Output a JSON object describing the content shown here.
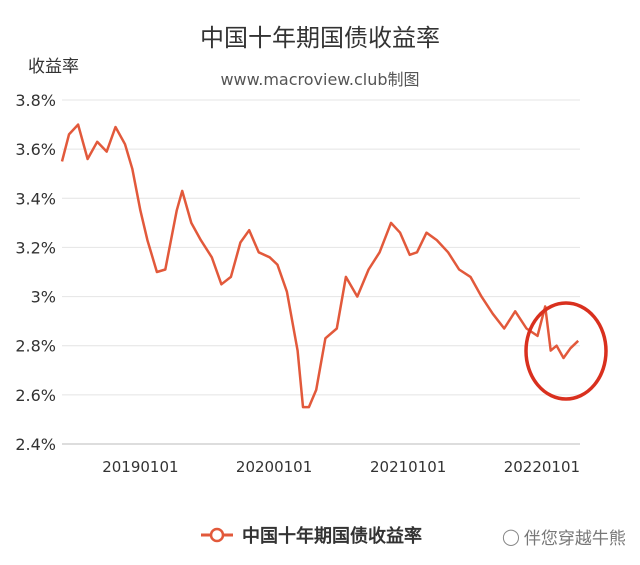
{
  "chart_data": {
    "type": "line",
    "title": "中国十年期国债收益率",
    "subtitle": "www.macroview.club制图",
    "ylabel": "收益率",
    "ylim": [
      2.4,
      3.8
    ],
    "yticks": [
      "2.4%",
      "2.6%",
      "2.8%",
      "3%",
      "3.2%",
      "3.4%",
      "3.6%",
      "3.8%"
    ],
    "xticks": [
      "20190101",
      "20200101",
      "20210101",
      "20220101"
    ],
    "xlim": [
      "2018-06-01",
      "2022-04-15"
    ],
    "grid": true,
    "legend": "bottom",
    "series": [
      {
        "name": "中国十年期国债收益率",
        "color": "#e2593b",
        "x": [
          "2018-06-01",
          "2018-06-20",
          "2018-07-15",
          "2018-08-10",
          "2018-09-05",
          "2018-10-01",
          "2018-10-25",
          "2018-11-20",
          "2018-12-10",
          "2019-01-01",
          "2019-01-20",
          "2019-02-15",
          "2019-03-10",
          "2019-04-10",
          "2019-04-25",
          "2019-05-20",
          "2019-06-15",
          "2019-07-15",
          "2019-08-10",
          "2019-09-05",
          "2019-10-01",
          "2019-10-25",
          "2019-11-20",
          "2019-12-20",
          "2020-01-10",
          "2020-02-05",
          "2020-03-05",
          "2020-03-20",
          "2020-04-05",
          "2020-04-25",
          "2020-05-20",
          "2020-06-20",
          "2020-07-15",
          "2020-08-15",
          "2020-09-15",
          "2020-10-15",
          "2020-11-15",
          "2020-12-10",
          "2021-01-05",
          "2021-01-25",
          "2021-02-20",
          "2021-03-20",
          "2021-04-20",
          "2021-05-20",
          "2021-06-20",
          "2021-07-20",
          "2021-08-20",
          "2021-09-20",
          "2021-10-20",
          "2021-11-20",
          "2021-12-20",
          "2022-01-10",
          "2022-01-25",
          "2022-02-10",
          "2022-03-01",
          "2022-03-20",
          "2022-04-10"
        ],
        "values": [
          3.55,
          3.66,
          3.7,
          3.56,
          3.63,
          3.59,
          3.69,
          3.62,
          3.52,
          3.35,
          3.23,
          3.1,
          3.11,
          3.35,
          3.43,
          3.3,
          3.23,
          3.16,
          3.05,
          3.08,
          3.22,
          3.27,
          3.18,
          3.16,
          3.13,
          3.02,
          2.78,
          2.55,
          2.55,
          2.62,
          2.83,
          2.87,
          3.08,
          3.0,
          3.11,
          3.18,
          3.3,
          3.26,
          3.17,
          3.18,
          3.26,
          3.23,
          3.18,
          3.11,
          3.08,
          3.0,
          2.93,
          2.87,
          2.94,
          2.87,
          2.84,
          2.96,
          2.78,
          2.8,
          2.75,
          2.79,
          2.82
        ]
      }
    ]
  },
  "legend": {
    "label": "中国十年期国债收益率"
  },
  "watermark": {
    "icon": "wechat-icon",
    "text": "伴您穿越牛熊"
  },
  "annotation": {
    "type": "circle",
    "color": "#d9301e"
  }
}
